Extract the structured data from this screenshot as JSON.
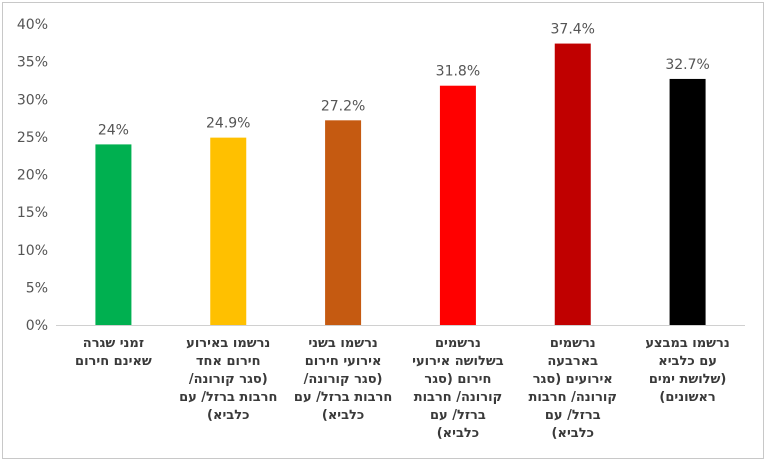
{
  "chart_data": {
    "type": "bar",
    "title": "",
    "xlabel": "",
    "ylabel": "",
    "ylim": [
      0,
      40
    ],
    "yticks": [
      "0%",
      "5%",
      "10%",
      "15%",
      "20%",
      "25%",
      "30%",
      "35%",
      "40%"
    ],
    "grid": false,
    "legend": "none",
    "categories": [
      [
        "זמני שגרה",
        "שאינם חירום"
      ],
      [
        "נרשמו באירוע",
        "חירום אחד",
        "(סגר קורונה/",
        "חרבות ברזל/ עם",
        "כלביא)"
      ],
      [
        "נרשמו בשני",
        "אירועי חירום",
        "(סגר קורונה/",
        "חרבות ברזל/ עם",
        "כלביא)"
      ],
      [
        "נרשמים",
        "בשלושה אירועי",
        "חירום (סגר",
        "קורונה/ חרבות",
        "ברזל/ עם",
        "כלביא)"
      ],
      [
        "נרשמים",
        "בארבעה",
        "אירועים (סגר",
        "קורונה/ חרבות",
        "ברזל/ עם",
        "כלביא)"
      ],
      [
        "נרשמו במבצע",
        "עם כלביא",
        "(שלושת ימים",
        "ראשונים)"
      ]
    ],
    "values": [
      24,
      24.9,
      27.2,
      31.8,
      37.4,
      32.7
    ],
    "data_labels": [
      "24%",
      "24.9%",
      "27.2%",
      "31.8%",
      "37.4%",
      "32.7%"
    ],
    "colors": [
      "#00B050",
      "#FFC000",
      "#C55A11",
      "#FF0000",
      "#C00000",
      "#000000"
    ]
  }
}
